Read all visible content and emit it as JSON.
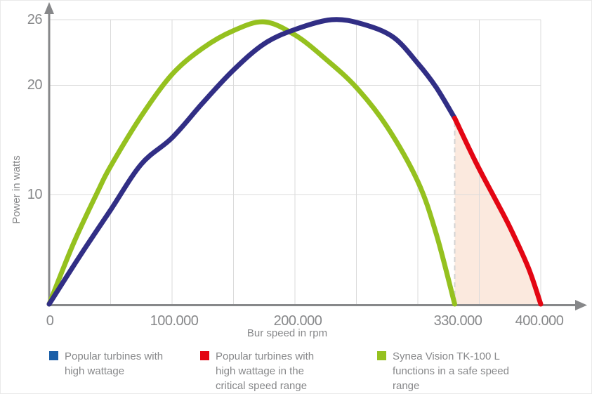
{
  "chart": {
    "ylabel": "Power in watts",
    "xlabel": "Bur speed in rpm",
    "y_ticks": [
      {
        "value": 26,
        "label": "26"
      },
      {
        "value": 20,
        "label": "20"
      },
      {
        "value": 10,
        "label": "10"
      }
    ],
    "x_ticks": [
      {
        "value": 0,
        "label": "0"
      },
      {
        "value": 100000,
        "label": "100.000"
      },
      {
        "value": 200000,
        "label": "200.000"
      },
      {
        "value": 330000,
        "label": "330.000"
      },
      {
        "value": 400000,
        "label": "400.000"
      }
    ]
  },
  "chart_data": {
    "type": "line",
    "title": "",
    "xlabel": "Bur speed in rpm",
    "ylabel": "Power in watts",
    "xlim": [
      0,
      437000
    ],
    "ylim": [
      0,
      27.5
    ],
    "grid": true,
    "x_gridline_step": 50000,
    "x_gridline_max": 400000,
    "legend_position": "bottom",
    "series": [
      {
        "name": "Synea Vision TK-100 L functions in a safe speed range",
        "color": "#95c11f",
        "points": [
          [
            0,
            0
          ],
          [
            20000,
            5.6
          ],
          [
            40000,
            10.4
          ],
          [
            50000,
            12.6
          ],
          [
            75000,
            17.2
          ],
          [
            100000,
            21.0
          ],
          [
            125000,
            23.4
          ],
          [
            150000,
            25.0
          ],
          [
            175000,
            25.8
          ],
          [
            200000,
            24.6
          ],
          [
            225000,
            22.4
          ],
          [
            250000,
            19.8
          ],
          [
            275000,
            16.2
          ],
          [
            300000,
            11.2
          ],
          [
            315000,
            6.4
          ],
          [
            330000,
            0
          ]
        ]
      },
      {
        "name": "Popular turbines with high wattage",
        "color": "#312e85",
        "points": [
          [
            0,
            0
          ],
          [
            25000,
            4.4
          ],
          [
            50000,
            8.6
          ],
          [
            75000,
            12.8
          ],
          [
            100000,
            15.2
          ],
          [
            125000,
            18.4
          ],
          [
            150000,
            21.4
          ],
          [
            175000,
            23.8
          ],
          [
            200000,
            25.1
          ],
          [
            230000,
            26.0
          ],
          [
            255000,
            25.6
          ],
          [
            280000,
            24.4
          ],
          [
            300000,
            22.0
          ],
          [
            315000,
            19.8
          ],
          [
            330000,
            17.0
          ]
        ]
      },
      {
        "name": "Popular turbines with high wattage in the critical speed range",
        "color": "#e30613",
        "points": [
          [
            330000,
            17.0
          ],
          [
            347000,
            13.0
          ],
          [
            362000,
            9.8
          ],
          [
            375000,
            7.0
          ],
          [
            390000,
            3.3
          ],
          [
            400000,
            0
          ]
        ]
      }
    ],
    "annotations": {
      "dashed_line_x": 330000,
      "shaded_region": {
        "from_x": 330000,
        "to_x": 400000,
        "fill": "#fbe9de",
        "description": "critical speed range area under the red curve"
      }
    }
  },
  "legend": {
    "items": [
      {
        "label": "Popular turbines with high wattage",
        "color": "#1b5fa8"
      },
      {
        "label": "Popular turbines with high wattage in the critical speed range",
        "color": "#e30613"
      },
      {
        "label": "Synea Vision TK-100 L functions in a safe speed range",
        "color": "#95c11f"
      }
    ]
  },
  "colors": {
    "axis": "#87888a",
    "text": "#87888a",
    "gridline": "#dbdbdb",
    "dashed_line": "#d2d2d2"
  }
}
